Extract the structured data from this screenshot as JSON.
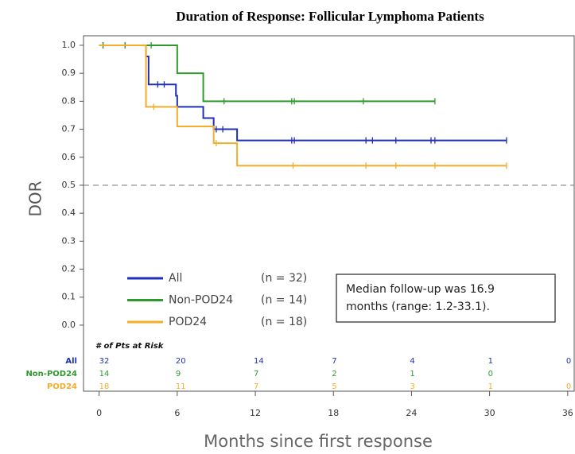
{
  "chart_data": {
    "type": "step",
    "title": "Duration of Response: Follicular Lymphoma Patients",
    "y_label": "DOR",
    "x_label": "Months since first response",
    "xlim": [
      -1.2,
      36.5
    ],
    "ylim": [
      -0.236,
      1.034
    ],
    "xticks": [
      0,
      6,
      12,
      18,
      24,
      30,
      36
    ],
    "yticks": [
      {
        "value": 1,
        "label": "1.0"
      },
      0.9,
      0.8,
      0.7,
      0.6,
      0.5,
      0.4,
      0.3,
      0.2,
      0.1,
      {
        "value": 0,
        "label": "0.0"
      }
    ],
    "reference_line": 0.5,
    "series": [
      {
        "name": "All",
        "n_label": "(n = 32)",
        "color": "#1f2fb8",
        "x": [
          0,
          3.6,
          3.8,
          5.9,
          6.0,
          8.0,
          8.8,
          10.6,
          31.3
        ],
        "values": [
          1.0,
          0.96,
          0.86,
          0.82,
          0.78,
          0.74,
          0.7,
          0.66,
          0.66
        ],
        "censored_x": [
          0.3,
          2,
          4.5,
          5.0,
          9.0,
          9.5,
          14.8,
          15.0,
          20.5,
          21.0,
          22.8,
          25.5,
          25.8,
          31.3
        ],
        "censored_y": [
          1.0,
          1.0,
          0.86,
          0.86,
          0.7,
          0.7,
          0.66,
          0.66,
          0.66,
          0.66,
          0.66,
          0.66,
          0.66,
          0.66
        ]
      },
      {
        "name": "Non-POD24",
        "n_label": "(n = 14)",
        "color": "#2e9a2e",
        "x": [
          0,
          6,
          8,
          25.8
        ],
        "values": [
          1.0,
          0.9,
          0.8,
          0.8
        ],
        "censored_x": [
          0.3,
          2,
          4.0,
          9.6,
          14.8,
          15.0,
          20.3,
          25.8
        ],
        "censored_y": [
          1.0,
          1.0,
          1.0,
          0.8,
          0.8,
          0.8,
          0.8,
          0.8
        ]
      },
      {
        "name": "POD24",
        "n_label": "(n = 18)",
        "color": "#f4ad2a",
        "x": [
          0,
          3.6,
          6,
          8.8,
          10.6,
          31.3
        ],
        "values": [
          1.0,
          0.78,
          0.71,
          0.65,
          0.57,
          0.57
        ],
        "censored_x": [
          4.2,
          9.0,
          14.9,
          20.5,
          22.8,
          25.8,
          31.3
        ],
        "censored_y": [
          0.78,
          0.65,
          0.57,
          0.57,
          0.57,
          0.57,
          0.57
        ]
      }
    ],
    "annotation_lines": [
      "Median follow-up was 16.9",
      "months (range: 1.2-33.1)."
    ],
    "risk_table": {
      "header": "# of Pts at Risk",
      "rows": [
        {
          "label": "All",
          "color": "#1f2fb8",
          "values": [
            32,
            20,
            14,
            7,
            4,
            1,
            0
          ]
        },
        {
          "label": "Non-POD24",
          "color": "#2e9a2e",
          "values": [
            14,
            9,
            7,
            2,
            1,
            0,
            null
          ]
        },
        {
          "label": "POD24",
          "color": "#f4ad2a",
          "values": [
            18,
            11,
            7,
            5,
            3,
            1,
            0
          ]
        }
      ]
    }
  }
}
